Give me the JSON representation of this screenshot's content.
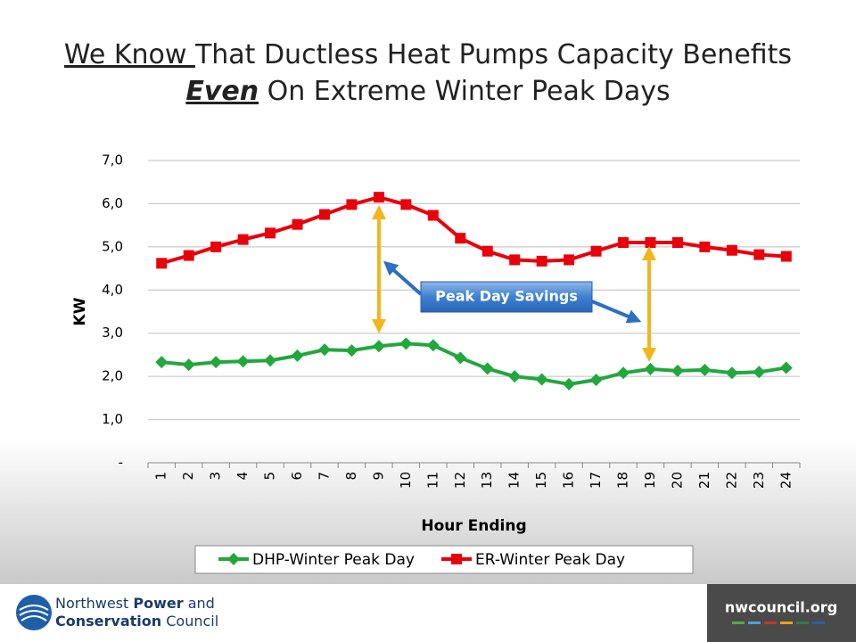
{
  "slide": {
    "title_line1": [
      {
        "text": "We Know ",
        "underline": true
      },
      {
        "text": "That Ductless Heat Pumps Capacity Benefits"
      }
    ],
    "title_line2": [
      {
        "text": "Even",
        "underline": true,
        "bold": true,
        "italic": true
      },
      {
        "text": " On Extreme Winter Peak Days"
      }
    ]
  },
  "footer": {
    "org_line1": [
      {
        "text": "Northwest "
      },
      {
        "text": "Power",
        "bold": true
      },
      {
        "text": " and"
      }
    ],
    "org_line2": [
      {
        "text": "Conservation",
        "bold": true
      },
      {
        "text": " Council"
      }
    ],
    "website": "nwcouncil.org"
  },
  "chart_data": {
    "type": "line",
    "x_label": "Hour Ending",
    "y_label": "KW",
    "annotation": "Peak Day Savings",
    "categories": [
      "1",
      "2",
      "3",
      "4",
      "5",
      "6",
      "7",
      "8",
      "9",
      "10",
      "11",
      "12",
      "13",
      "14",
      "15",
      "16",
      "17",
      "18",
      "19",
      "20",
      "21",
      "22",
      "23",
      "24"
    ],
    "series": [
      {
        "name": "DHP-Winter Peak Day",
        "color": "#22a73c",
        "marker": "diamond",
        "values": [
          2.33,
          2.27,
          2.33,
          2.35,
          2.37,
          2.48,
          2.62,
          2.6,
          2.7,
          2.76,
          2.72,
          2.43,
          2.18,
          2.0,
          1.93,
          1.82,
          1.92,
          2.08,
          2.17,
          2.13,
          2.15,
          2.08,
          2.1,
          2.2
        ]
      },
      {
        "name": "ER-Winter Peak Day",
        "color": "#e8000b",
        "marker": "square",
        "values": [
          4.62,
          4.8,
          5.0,
          5.17,
          5.32,
          5.52,
          5.75,
          5.98,
          6.15,
          5.98,
          5.73,
          5.2,
          4.9,
          4.7,
          4.67,
          4.7,
          4.9,
          5.1,
          5.1,
          5.1,
          5.0,
          4.92,
          4.82,
          4.78
        ]
      }
    ],
    "ylim": [
      0,
      7
    ],
    "yticks": [
      {
        "value": 0,
        "label": "-"
      },
      {
        "value": 1,
        "label": "1,0"
      },
      {
        "value": 2,
        "label": "2,0"
      },
      {
        "value": 3,
        "label": "3,0"
      },
      {
        "value": 4,
        "label": "4,0"
      },
      {
        "value": 5,
        "label": "5,0"
      },
      {
        "value": 6,
        "label": "6,0"
      },
      {
        "value": 7,
        "label": "7,0"
      }
    ],
    "grid": true,
    "legend": "bottom"
  }
}
